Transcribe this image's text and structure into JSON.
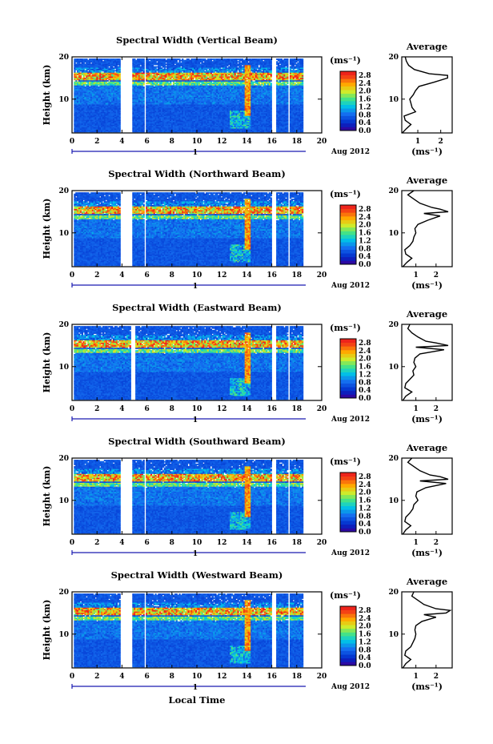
{
  "chart_data": [
    {
      "type": "heatmap",
      "title": "Spectral Width (Vertical Beam)",
      "ylabel": "Height (km)",
      "xticks": [
        "0",
        "2",
        "4",
        "6",
        "8",
        "10",
        "12",
        "14",
        "16",
        "18",
        "20"
      ],
      "yticks": [
        "10",
        "20"
      ],
      "xlim": [
        0,
        20
      ],
      "ylim": [
        2,
        20
      ],
      "day_label": "1",
      "month_label": "Aug 2012",
      "colorbar": {
        "unit": "(ms⁻¹)",
        "ticks": [
          "0.0",
          "0.4",
          "0.8",
          "1.2",
          "1.6",
          "2.0",
          "2.4",
          "2.8"
        ],
        "range": [
          0,
          3.0
        ]
      },
      "gaps": [
        [
          3.8,
          4.8
        ],
        [
          5.7,
          5.9
        ],
        [
          15.9,
          16.3
        ],
        [
          17.2,
          17.4
        ]
      ],
      "data_end": 18.4,
      "average": {
        "title": "Average",
        "xlabel": "(ms⁻¹)",
        "xticks": [
          "1",
          "2"
        ],
        "yticks": [
          "10",
          "20"
        ],
        "xlim": [
          0.3,
          2.5
        ],
        "profile": [
          [
            2,
            0.32
          ],
          [
            3,
            0.5
          ],
          [
            4,
            0.7
          ],
          [
            5,
            0.45
          ],
          [
            6,
            0.4
          ],
          [
            7,
            0.9
          ],
          [
            8,
            0.75
          ],
          [
            9,
            0.7
          ],
          [
            10,
            0.65
          ],
          [
            11,
            0.8
          ],
          [
            12,
            0.9
          ],
          [
            13,
            1.05
          ],
          [
            14,
            1.7
          ],
          [
            15,
            2.3
          ],
          [
            15.6,
            2.3
          ],
          [
            16,
            1.5
          ],
          [
            17,
            0.85
          ],
          [
            18,
            0.6
          ],
          [
            19,
            0.5
          ],
          [
            20,
            0.45
          ]
        ]
      }
    },
    {
      "type": "heatmap",
      "title": "Spectral Width (Northward Beam)",
      "ylabel": "Height (km)",
      "xticks": [
        "0",
        "2",
        "4",
        "6",
        "8",
        "10",
        "12",
        "14",
        "16",
        "18",
        "20"
      ],
      "yticks": [
        "10",
        "20"
      ],
      "xlim": [
        0,
        20
      ],
      "ylim": [
        2,
        20
      ],
      "day_label": "1",
      "month_label": "Aug 2012",
      "colorbar": {
        "unit": "(ms⁻¹)",
        "ticks": [
          "0.0",
          "0.4",
          "0.8",
          "1.2",
          "1.6",
          "2.0",
          "2.4",
          "2.8"
        ],
        "range": [
          0,
          3.0
        ]
      },
      "gaps": [
        [
          3.8,
          4.8
        ],
        [
          5.7,
          5.9
        ],
        [
          15.9,
          16.3
        ],
        [
          17.2,
          17.4
        ]
      ],
      "data_end": 18.4,
      "average": {
        "title": "Average",
        "xlabel": "(ms⁻¹)",
        "xticks": [
          "1",
          "2"
        ],
        "yticks": [
          "10",
          "20"
        ],
        "xlim": [
          0.3,
          2.8
        ],
        "profile": [
          [
            2,
            0.35
          ],
          [
            3,
            0.55
          ],
          [
            4,
            0.8
          ],
          [
            5,
            0.5
          ],
          [
            6,
            0.45
          ],
          [
            7,
            0.7
          ],
          [
            8,
            0.85
          ],
          [
            9,
            0.9
          ],
          [
            10,
            1.0
          ],
          [
            11,
            0.95
          ],
          [
            12,
            1.1
          ],
          [
            13,
            1.6
          ],
          [
            14,
            2.2
          ],
          [
            14.6,
            1.4
          ],
          [
            15,
            2.6
          ],
          [
            15.6,
            2.2
          ],
          [
            16,
            1.8
          ],
          [
            17,
            1.2
          ],
          [
            18,
            0.9
          ],
          [
            19,
            0.6
          ],
          [
            20,
            0.9
          ]
        ]
      }
    },
    {
      "type": "heatmap",
      "title": "Spectral Width (Eastward Beam)",
      "ylabel": "Height (km)",
      "xticks": [
        "0",
        "2",
        "4",
        "6",
        "8",
        "10",
        "12",
        "14",
        "16",
        "18",
        "20"
      ],
      "yticks": [
        "10",
        "20"
      ],
      "xlim": [
        0,
        20
      ],
      "ylim": [
        2,
        20
      ],
      "day_label": "1",
      "month_label": "Aug 2012",
      "colorbar": {
        "unit": "(ms⁻¹)",
        "ticks": [
          "0.0",
          "0.4",
          "0.8",
          "1.2",
          "1.6",
          "2.0",
          "2.4",
          "2.8"
        ],
        "range": [
          0,
          3.0
        ]
      },
      "gaps": [
        [
          4.7,
          5.0
        ],
        [
          15.9,
          16.3
        ],
        [
          17.2,
          17.4
        ]
      ],
      "data_end": 18.4,
      "average": {
        "title": "Average",
        "xlabel": "(ms⁻¹)",
        "xticks": [
          "1",
          "2"
        ],
        "yticks": [
          "10",
          "20"
        ],
        "xlim": [
          0.3,
          2.8
        ],
        "profile": [
          [
            2,
            0.35
          ],
          [
            3,
            0.5
          ],
          [
            4,
            0.8
          ],
          [
            5,
            0.45
          ],
          [
            6,
            0.5
          ],
          [
            7,
            0.7
          ],
          [
            8,
            0.9
          ],
          [
            9,
            0.85
          ],
          [
            10,
            1.0
          ],
          [
            11,
            0.9
          ],
          [
            12,
            0.95
          ],
          [
            13,
            1.2
          ],
          [
            14,
            2.4
          ],
          [
            14.6,
            1.0
          ],
          [
            15,
            2.6
          ],
          [
            15.6,
            2.0
          ],
          [
            16,
            1.5
          ],
          [
            17,
            1.1
          ],
          [
            18,
            0.8
          ],
          [
            19,
            0.6
          ],
          [
            20,
            0.7
          ]
        ]
      }
    },
    {
      "type": "heatmap",
      "title": "Spectral Width (Southward Beam)",
      "ylabel": "Height (km)",
      "xticks": [
        "0",
        "2",
        "4",
        "6",
        "8",
        "10",
        "12",
        "14",
        "16",
        "18",
        "20"
      ],
      "yticks": [
        "10",
        "20"
      ],
      "xlim": [
        0,
        20
      ],
      "ylim": [
        2,
        20
      ],
      "day_label": "1",
      "month_label": "Aug 2012",
      "colorbar": {
        "unit": "(ms⁻¹)",
        "ticks": [
          "0.0",
          "0.4",
          "0.8",
          "1.2",
          "1.6",
          "2.0",
          "2.4",
          "2.8"
        ],
        "range": [
          0,
          3.0
        ]
      },
      "gaps": [
        [
          3.8,
          4.8
        ],
        [
          5.7,
          5.9
        ],
        [
          15.9,
          16.3
        ],
        [
          17.2,
          17.4
        ]
      ],
      "data_end": 18.4,
      "average": {
        "title": "Average",
        "xlabel": "(ms⁻¹)",
        "xticks": [
          "1",
          "2"
        ],
        "yticks": [
          "10",
          "20"
        ],
        "xlim": [
          0.3,
          2.8
        ],
        "profile": [
          [
            2,
            0.35
          ],
          [
            3,
            0.5
          ],
          [
            4,
            0.75
          ],
          [
            5,
            0.45
          ],
          [
            6,
            0.5
          ],
          [
            7,
            0.7
          ],
          [
            8,
            0.85
          ],
          [
            9,
            0.9
          ],
          [
            10,
            1.1
          ],
          [
            11,
            1.0
          ],
          [
            12,
            1.05
          ],
          [
            13,
            1.5
          ],
          [
            14,
            2.5
          ],
          [
            14.6,
            1.2
          ],
          [
            15,
            2.6
          ],
          [
            15.6,
            2.2
          ],
          [
            16,
            1.7
          ],
          [
            17,
            1.2
          ],
          [
            18,
            0.9
          ],
          [
            19,
            0.6
          ],
          [
            20,
            0.8
          ]
        ]
      }
    },
    {
      "type": "heatmap",
      "title": "Spectral Width (Westward Beam)",
      "ylabel": "Height (km)",
      "xticks": [
        "0",
        "2",
        "4",
        "6",
        "8",
        "10",
        "12",
        "14",
        "16",
        "18",
        "20"
      ],
      "yticks": [
        "10",
        "20"
      ],
      "xlim": [
        0,
        20
      ],
      "ylim": [
        2,
        20
      ],
      "day_label": "1",
      "month_label": "Aug 2012",
      "colorbar": {
        "unit": "(ms⁻¹)",
        "ticks": [
          "0.0",
          "0.4",
          "0.8",
          "1.2",
          "1.6",
          "2.0",
          "2.4",
          "2.8"
        ],
        "range": [
          0,
          3.0
        ]
      },
      "gaps": [
        [
          3.8,
          4.8
        ],
        [
          5.7,
          5.9
        ],
        [
          15.9,
          16.3
        ],
        [
          17.2,
          17.4
        ]
      ],
      "data_end": 18.4,
      "average": {
        "title": "Average",
        "xlabel": "(ms⁻¹)",
        "xticks": [
          "1",
          "2"
        ],
        "yticks": [
          "10",
          "20"
        ],
        "xlim": [
          0.3,
          2.8
        ],
        "profile": [
          [
            2,
            0.35
          ],
          [
            3,
            0.5
          ],
          [
            4,
            0.75
          ],
          [
            5,
            0.45
          ],
          [
            6,
            0.5
          ],
          [
            7,
            0.75
          ],
          [
            8,
            0.85
          ],
          [
            9,
            0.95
          ],
          [
            10,
            1.0
          ],
          [
            11,
            0.95
          ],
          [
            12,
            1.0
          ],
          [
            13,
            1.3
          ],
          [
            14,
            2.0
          ],
          [
            14.6,
            1.4
          ],
          [
            15,
            2.5
          ],
          [
            15.6,
            2.7
          ],
          [
            16,
            2.0
          ],
          [
            17,
            1.4
          ],
          [
            18,
            1.1
          ],
          [
            19,
            0.8
          ],
          [
            20,
            0.9
          ]
        ]
      }
    }
  ],
  "xlabel_bottom": "Local Time"
}
